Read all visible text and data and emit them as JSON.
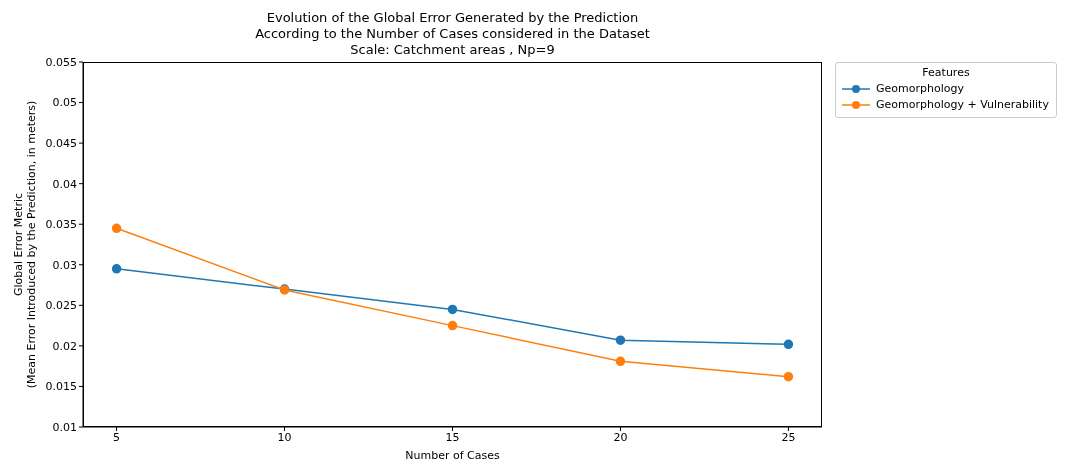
{
  "chart_data": {
    "type": "line",
    "title": "Evolution of the Global Error Generated by the Prediction\nAccording to the Number of Cases considered in the Dataset\nScale: Catchment areas , Np=9",
    "xlabel": "Number of Cases",
    "ylabel": "Global Error Metric\n(Mean Error Introduced by the Prediction, in meters)",
    "legend_title": "Features",
    "x": [
      5,
      10,
      15,
      20,
      25
    ],
    "series": [
      {
        "name": "Geomorphology",
        "color": "#1f77b4",
        "values": [
          0.0295,
          0.027,
          0.0245,
          0.0207,
          0.0202
        ]
      },
      {
        "name": "Geomorphology + Vulnerability",
        "color": "#ff7f0e",
        "values": [
          0.0345,
          0.0269,
          0.0225,
          0.0181,
          0.0162
        ]
      }
    ],
    "xlim": [
      4,
      26
    ],
    "xticks": [
      5,
      10,
      15,
      20,
      25
    ],
    "ylim": [
      0.01,
      0.055
    ],
    "yticks": [
      0.01,
      0.015,
      0.02,
      0.025,
      0.03,
      0.035,
      0.04,
      0.045,
      0.05,
      0.055
    ],
    "legend": "top right",
    "marker": "circle",
    "line_style": "solid"
  }
}
